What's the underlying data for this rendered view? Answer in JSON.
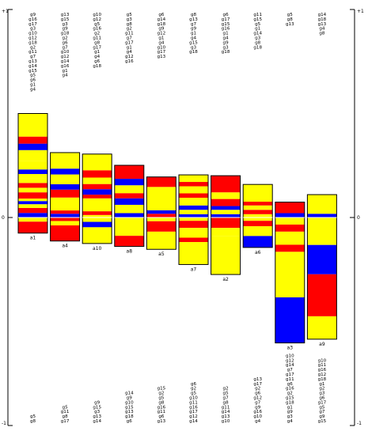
{
  "chart_data": {
    "type": "bar",
    "title": "",
    "xlabel": "",
    "ylabel": "",
    "ylim": [
      -1,
      1
    ],
    "y_tick_labels": {
      "top": "+1",
      "zero": "0",
      "bottom": "-1"
    },
    "colors": {
      "red": "#ff0000",
      "yellow": "#ffff00",
      "blue": "#0000ff"
    },
    "columns": [
      {
        "name": "a1",
        "top_labels": [
          "g9",
          "g16",
          "g17",
          "g3",
          "g10",
          "g12",
          "g18",
          "g2",
          "g11",
          "g7",
          "g13",
          "g14",
          "g15",
          "g5",
          "g6",
          "g1",
          "g4"
        ],
        "bottom_labels": [
          "g5",
          "g8"
        ],
        "pos_segments": [
          {
            "value": 0.022,
            "color": "blue"
          },
          {
            "value": 0.024,
            "color": "red"
          },
          {
            "value": 0.018,
            "color": "yellow"
          },
          {
            "value": 0.015,
            "color": "blue"
          },
          {
            "value": 0.012,
            "color": "yellow"
          },
          {
            "value": 0.03,
            "color": "red"
          },
          {
            "value": 0.022,
            "color": "yellow"
          },
          {
            "value": 0.023,
            "color": "red"
          },
          {
            "value": 0.022,
            "color": "yellow"
          },
          {
            "value": 0.021,
            "color": "yellow"
          },
          {
            "value": 0.022,
            "color": "blue"
          },
          {
            "value": 0.042,
            "color": "yellow"
          },
          {
            "value": 0.051,
            "color": "yellow"
          },
          {
            "value": 0.031,
            "color": "blue"
          },
          {
            "value": 0.034,
            "color": "red"
          },
          {
            "value": 0.111,
            "color": "yellow"
          }
        ],
        "neg_segments": [
          {
            "value": 0.02,
            "color": "yellow"
          },
          {
            "value": 0.055,
            "color": "red"
          }
        ]
      },
      {
        "name": "a4",
        "top_labels": [
          "g13",
          "g15",
          "g3",
          "g9",
          "g18",
          "g2",
          "g6",
          "g7",
          "g10",
          "g12",
          "g14",
          "g16",
          "g1",
          "g4"
        ],
        "bottom_labels": [
          "g5",
          "g11",
          "g8",
          "g17"
        ],
        "pos_segments": [
          {
            "value": 0.018,
            "color": "blue"
          },
          {
            "value": 0.016,
            "color": "red"
          },
          {
            "value": 0.062,
            "color": "yellow"
          },
          {
            "value": 0.038,
            "color": "red"
          },
          {
            "value": 0.026,
            "color": "blue"
          },
          {
            "value": 0.047,
            "color": "yellow"
          },
          {
            "value": 0.028,
            "color": "blue"
          },
          {
            "value": 0.077,
            "color": "yellow"
          }
        ],
        "neg_segments": [
          {
            "value": 0.017,
            "color": "red"
          },
          {
            "value": 0.021,
            "color": "yellow"
          },
          {
            "value": 0.075,
            "color": "red"
          }
        ]
      },
      {
        "name": "a10",
        "top_labels": [
          "g10",
          "g12",
          "g5",
          "g16",
          "g2",
          "g11",
          "g8",
          "g17",
          "g1",
          "g4",
          "g6",
          "g18"
        ],
        "bottom_labels": [
          "g9",
          "g15",
          "g3",
          "g13",
          "g14"
        ],
        "pos_segments": [
          {
            "value": 0.012,
            "color": "yellow"
          },
          {
            "value": 0.018,
            "color": "red"
          },
          {
            "value": 0.062,
            "color": "yellow"
          },
          {
            "value": 0.018,
            "color": "red"
          },
          {
            "value": 0.026,
            "color": "blue"
          },
          {
            "value": 0.025,
            "color": "red"
          },
          {
            "value": 0.031,
            "color": "yellow"
          },
          {
            "value": 0.035,
            "color": "red"
          },
          {
            "value": 0.078,
            "color": "yellow"
          }
        ],
        "neg_segments": [
          {
            "value": 0.021,
            "color": "yellow"
          },
          {
            "value": 0.026,
            "color": "blue"
          },
          {
            "value": 0.078,
            "color": "yellow"
          }
        ]
      },
      {
        "name": "a8",
        "top_labels": [
          "g5",
          "g3",
          "g8",
          "g2",
          "g11",
          "g7",
          "g17",
          "g1",
          "g4",
          "g12",
          "g16"
        ],
        "bottom_labels": [
          "g14",
          "g9",
          "g10",
          "g15",
          "g13",
          "g18",
          "g6"
        ],
        "pos_segments": [
          {
            "value": 0.021,
            "color": "blue"
          },
          {
            "value": 0.04,
            "color": "yellow"
          },
          {
            "value": 0.031,
            "color": "blue"
          },
          {
            "value": 0.025,
            "color": "red"
          },
          {
            "value": 0.038,
            "color": "yellow"
          },
          {
            "value": 0.031,
            "color": "blue"
          },
          {
            "value": 0.065,
            "color": "red"
          }
        ],
        "neg_segments": [
          {
            "value": 0.088,
            "color": "yellow"
          },
          {
            "value": 0.051,
            "color": "red"
          }
        ]
      },
      {
        "name": "a5",
        "top_labels": [
          "g6",
          "g14",
          "g18",
          "g9",
          "g12",
          "g1",
          "g4",
          "g10",
          "g17",
          "g13"
        ],
        "bottom_labels": [
          "g15",
          "g2",
          "g5",
          "g8",
          "g16",
          "g11",
          "g6",
          "g13"
        ],
        "pos_segments": [
          {
            "value": 0.018,
            "color": "red"
          },
          {
            "value": 0.017,
            "color": "blue"
          },
          {
            "value": 0.112,
            "color": "yellow"
          },
          {
            "value": 0.048,
            "color": "red"
          }
        ],
        "neg_segments": [
          {
            "value": 0.018,
            "color": "yellow"
          },
          {
            "value": 0.05,
            "color": "red"
          },
          {
            "value": 0.085,
            "color": "yellow"
          }
        ]
      },
      {
        "name": "a7",
        "top_labels": [
          "g8",
          "g13",
          "g7",
          "g9",
          "g1",
          "g4",
          "g15",
          "g3",
          "g18"
        ],
        "bottom_labels": [
          "g6",
          "g2",
          "g5",
          "g10",
          "g11",
          "g16",
          "g17",
          "g12",
          "g14"
        ],
        "pos_segments": [
          {
            "value": 0.016,
            "color": "blue"
          },
          {
            "value": 0.021,
            "color": "yellow"
          },
          {
            "value": 0.021,
            "color": "blue"
          },
          {
            "value": 0.037,
            "color": "yellow"
          },
          {
            "value": 0.021,
            "color": "red"
          },
          {
            "value": 0.034,
            "color": "yellow"
          },
          {
            "value": 0.021,
            "color": "red"
          },
          {
            "value": 0.034,
            "color": "yellow"
          }
        ],
        "neg_segments": [
          {
            "value": 0.016,
            "color": "yellow"
          },
          {
            "value": 0.034,
            "color": "red"
          },
          {
            "value": 0.047,
            "color": "yellow"
          },
          {
            "value": 0.021,
            "color": "red"
          },
          {
            "value": 0.108,
            "color": "yellow"
          }
        ]
      },
      {
        "name": "a2",
        "top_labels": [
          "g6",
          "g17",
          "g15",
          "g16",
          "g1",
          "g4",
          "g9",
          "g3",
          "g18"
        ],
        "bottom_labels": [
          "g2",
          "g5",
          "g7",
          "g8",
          "g11",
          "g14",
          "g13",
          "g10"
        ],
        "pos_segments": [
          {
            "value": 0.016,
            "color": "blue"
          },
          {
            "value": 0.021,
            "color": "yellow"
          },
          {
            "value": 0.018,
            "color": "blue"
          },
          {
            "value": 0.034,
            "color": "red"
          },
          {
            "value": 0.032,
            "color": "yellow"
          },
          {
            "value": 0.08,
            "color": "red"
          }
        ],
        "neg_segments": [
          {
            "value": 0.05,
            "color": "red"
          },
          {
            "value": 0.04,
            "color": "yellow"
          },
          {
            "value": 0.184,
            "color": "yellow"
          }
        ]
      },
      {
        "name": "a6",
        "top_labels": [
          "g11",
          "g15",
          "g5",
          "g1",
          "g14",
          "g3",
          "g8",
          "g18"
        ],
        "bottom_labels": [
          "g13",
          "g17",
          "g2",
          "g6",
          "g12",
          "g7",
          "g9",
          "g16",
          "g10",
          "g4"
        ],
        "pos_segments": [
          {
            "value": 0.016,
            "color": "yellow"
          },
          {
            "value": 0.021,
            "color": "red"
          },
          {
            "value": 0.021,
            "color": "yellow"
          },
          {
            "value": 0.018,
            "color": "red"
          },
          {
            "value": 0.083,
            "color": "yellow"
          }
        ],
        "neg_segments": [
          {
            "value": 0.016,
            "color": "yellow"
          },
          {
            "value": 0.026,
            "color": "red"
          },
          {
            "value": 0.047,
            "color": "yellow"
          },
          {
            "value": 0.055,
            "color": "blue"
          }
        ]
      },
      {
        "name": "a3",
        "top_labels": [
          "g5",
          "g8",
          "g13"
        ],
        "bottom_labels": [
          "g10",
          "g12",
          "g14",
          "g7",
          "g17",
          "g11",
          "g6",
          "g16",
          "g2",
          "g15",
          "g18",
          "g1",
          "g9",
          "g3",
          "g4"
        ],
        "pos_segments": [
          {
            "value": 0.021,
            "color": "blue"
          },
          {
            "value": 0.053,
            "color": "red"
          }
        ],
        "neg_segments": [
          {
            "value": 0.034,
            "color": "yellow"
          },
          {
            "value": 0.034,
            "color": "red"
          },
          {
            "value": 0.063,
            "color": "yellow"
          },
          {
            "value": 0.034,
            "color": "red"
          },
          {
            "value": 0.219,
            "color": "yellow"
          },
          {
            "value": 0.219,
            "color": "blue"
          }
        ]
      },
      {
        "name": "a9",
        "top_labels": [
          "g14",
          "g18",
          "g13",
          "g4",
          "g8"
        ],
        "bottom_labels": [
          "g10",
          "g11",
          "g16",
          "g12",
          "g18",
          "g1",
          "g2",
          "g3",
          "g6",
          "g17",
          "g5",
          "g7",
          "g9",
          "g15"
        ],
        "pos_segments": [
          {
            "value": 0.018,
            "color": "blue"
          },
          {
            "value": 0.092,
            "color": "yellow"
          }
        ],
        "neg_segments": [
          {
            "value": 0.132,
            "color": "yellow"
          },
          {
            "value": 0.141,
            "color": "blue"
          },
          {
            "value": 0.202,
            "color": "red"
          },
          {
            "value": 0.11,
            "color": "yellow"
          }
        ]
      }
    ]
  }
}
